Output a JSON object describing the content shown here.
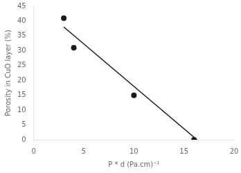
{
  "chart_data": {
    "type": "scatter",
    "xlabel": "P * d (Pa.cm)⁻¹",
    "ylabel": "Porosity in CuO layer (%)",
    "series": [
      {
        "type": "line",
        "color": "#1a1a1a",
        "x": [
          3.0,
          16.3
        ],
        "values": [
          38.0,
          0.0
        ]
      },
      {
        "type": "scatter",
        "color": "#1a1a1a",
        "x": [
          3,
          4,
          10,
          16
        ],
        "values": [
          41,
          31,
          15,
          0
        ]
      }
    ],
    "xlim": [
      0,
      20
    ],
    "ylim": [
      0,
      45
    ],
    "xticks": [
      0,
      5,
      10,
      15,
      20
    ],
    "yticks": [
      0,
      5,
      10,
      15,
      20,
      25,
      30,
      35,
      40,
      45
    ],
    "grid": false
  }
}
